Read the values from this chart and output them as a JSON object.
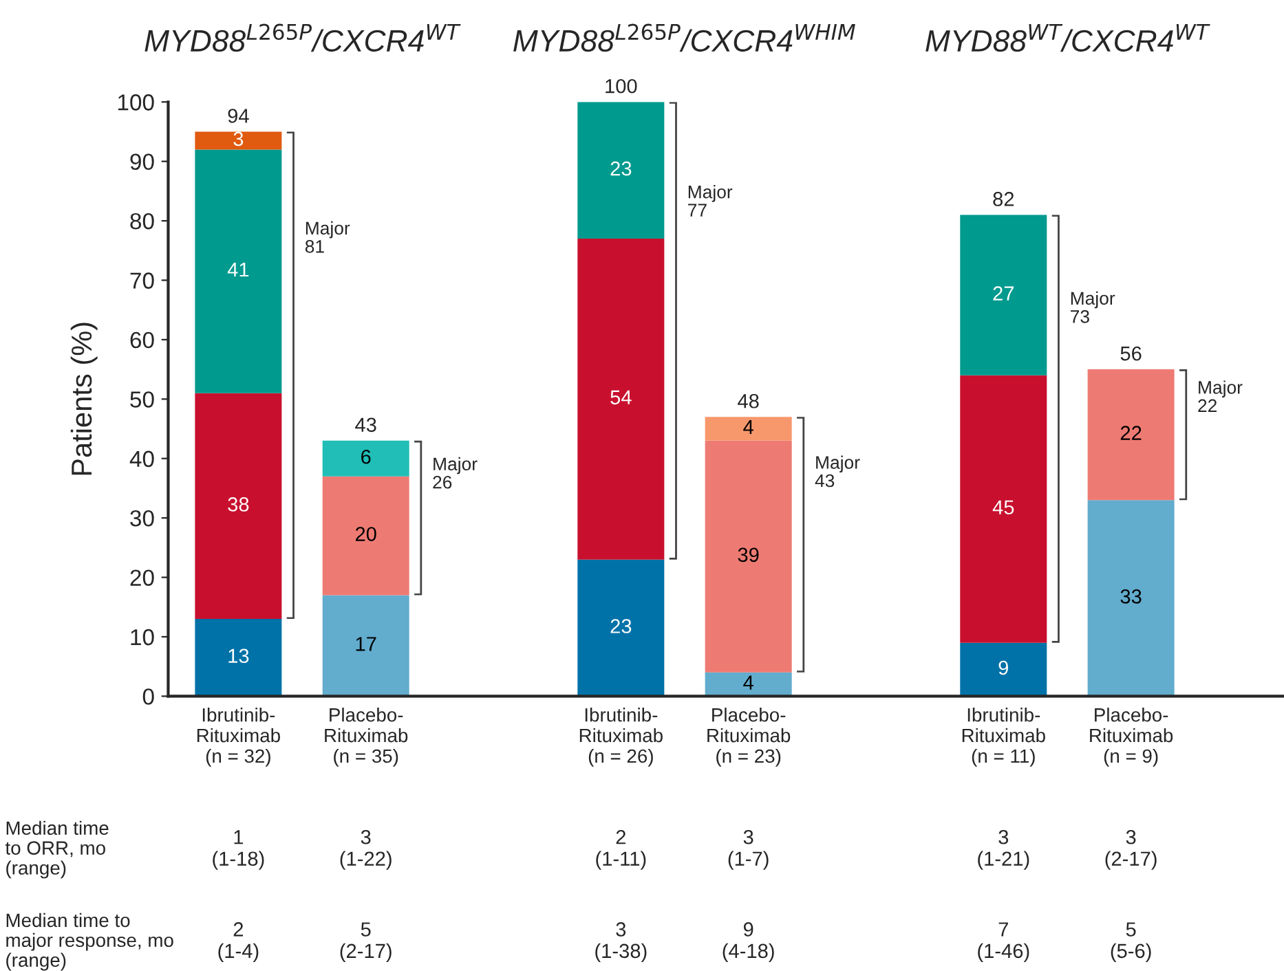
{
  "chart_data": {
    "type": "bar",
    "stacked": true,
    "ylabel": "Patients (%)",
    "categories": [
      "Ibrutinib-\nRituximab\n(n = 32)",
      "Placebo-\nRituximab\n(n = 35)",
      null,
      "Ibrutinib-\nRituximab\n(n = 26)",
      "Placebo-\nRituximab\n(n = 23)",
      null,
      "Ibrutinib-\nRituximab\n(n = 11)",
      "Placebo-\nRituximab\n(n = 9)"
    ],
    "series": [
      {
        "colors": [
          "#0072a8",
          "#62acce",
          null,
          "#0072a8",
          "#62acce",
          null,
          "#0072a8",
          "#62acce"
        ],
        "values": [
          13,
          17,
          null,
          23,
          4,
          null,
          9,
          33
        ]
      },
      {
        "colors": [
          "#c8102e",
          "#ee7b73",
          null,
          "#c8102e",
          "#ee7b73",
          null,
          "#c8102e",
          "#ee7b73"
        ],
        "values": [
          38,
          20,
          null,
          54,
          39,
          null,
          45,
          22
        ]
      },
      {
        "colors": [
          "#009a8e",
          "#20beb6",
          null,
          "#009a8e",
          "#f7976c",
          null,
          "#009a8e",
          null
        ],
        "values": [
          41,
          6,
          null,
          23,
          4,
          null,
          27,
          null
        ]
      },
      {
        "colors": [
          "#e05a10",
          null,
          null,
          null,
          null,
          null,
          null,
          null
        ],
        "values": [
          3,
          null,
          null,
          null,
          null,
          null,
          null,
          null
        ]
      }
    ],
    "totals": [
      "94",
      "43",
      null,
      "100",
      "48",
      null,
      "82",
      "56"
    ],
    "data_labels": true,
    "ylim": [
      0,
      100
    ],
    "yticks": [
      0,
      10,
      20,
      30,
      40,
      50,
      60,
      70,
      80,
      90,
      100
    ],
    "grid": false,
    "legend": false,
    "annotations": [
      "MYD88$^{L265P}$/CXCR4$^{WT}$",
      "MYD88$^{L265P}$/CXCR4$^{WHIM}$",
      "MYD88$^{WT}$/CXCR4$^{WT}$",
      "Major\n81",
      "Major\n26",
      "Major\n77",
      "Major\n43",
      "Major\n73",
      "Major\n22",
      "Median time\nto ORR, mo\n(range)",
      "1\n(1-18)",
      "3\n(1-22)",
      "2\n(1-11)",
      "3\n(1-7)",
      "3\n(1-21)",
      "3\n(2-17)",
      "Median time to\nmajor response, mo\n(range)",
      "2\n(1-4)",
      "5\n(2-17)",
      "3\n(1-38)",
      "9\n(4-18)",
      "7\n(1-46)",
      "5\n(5-6)"
    ]
  }
}
